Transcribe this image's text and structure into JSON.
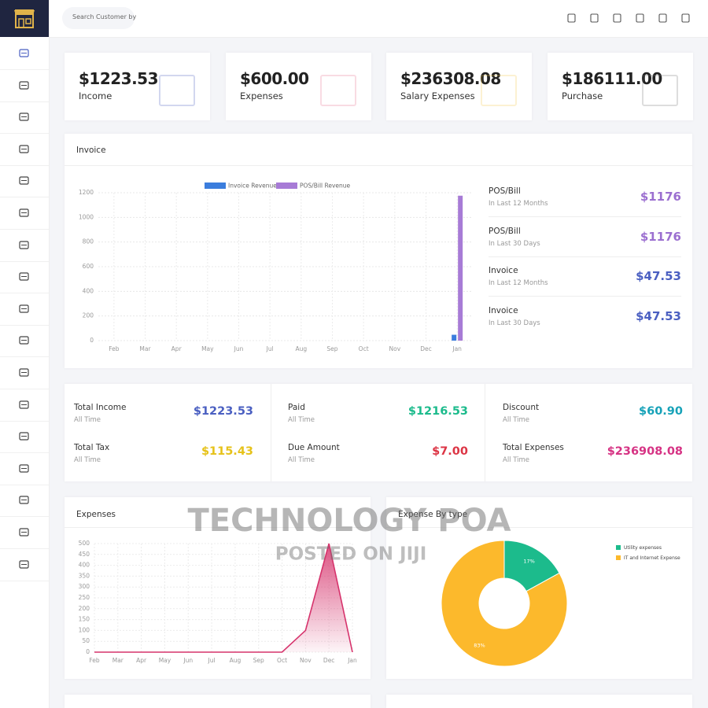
{
  "search_placeholder": "Search Customer by",
  "stat_cards": [
    {
      "value": "$1223.53",
      "label": "Income"
    },
    {
      "value": "$600.00",
      "label": "Expenses"
    },
    {
      "value": "$236308.08",
      "label": "Salary Expenses"
    },
    {
      "value": "$186111.00",
      "label": "Purchase"
    }
  ],
  "invoice_stats": [
    {
      "title": "POS/Bill",
      "period": "In Last 12 Months",
      "value": "$1176",
      "color": "#9b6fd0"
    },
    {
      "title": "POS/Bill",
      "period": "In Last 30 Days",
      "value": "$1176",
      "color": "#9b6fd0"
    },
    {
      "title": "Invoice",
      "period": "In Last 12 Months",
      "value": "$47.53",
      "color": "#4a5fc1"
    },
    {
      "title": "Invoice",
      "period": "In Last 30 Days",
      "value": "$47.53",
      "color": "#4a5fc1"
    }
  ],
  "summary": [
    {
      "title": "Total Income",
      "period": "All Time",
      "value": "$1223.53",
      "color": "#4a5fc1"
    },
    {
      "title": "Paid",
      "period": "All Time",
      "value": "$1216.53",
      "color": "#1cbb8c"
    },
    {
      "title": "Discount",
      "period": "All Time",
      "value": "$60.90",
      "color": "#17a2b8"
    },
    {
      "title": "Total Tax",
      "period": "All Time",
      "value": "$115.43",
      "color": "#e6c21a"
    },
    {
      "title": "Due Amount",
      "period": "All Time",
      "value": "$7.00",
      "color": "#dc3545"
    },
    {
      "title": "Total Expenses",
      "period": "All Time",
      "value": "$236908.08",
      "color": "#d63384"
    }
  ],
  "watermark": [
    "TECHNOLOGY POA",
    "POSTED ON JIJI"
  ],
  "chart_data": [
    {
      "type": "bar",
      "title": "Invoice",
      "categories": [
        "Feb",
        "Mar",
        "Apr",
        "May",
        "Jun",
        "Jul",
        "Aug",
        "Sep",
        "Oct",
        "Nov",
        "Dec",
        "Jan"
      ],
      "series": [
        {
          "name": "Invoice Revenue",
          "color": "#3b7ddd",
          "values": [
            0,
            0,
            0,
            0,
            0,
            0,
            0,
            0,
            0,
            0,
            0,
            47.53
          ]
        },
        {
          "name": "POS/Bill Revenue",
          "color": "#a77bd6",
          "values": [
            0,
            0,
            0,
            0,
            0,
            0,
            0,
            0,
            0,
            0,
            0,
            1176
          ]
        }
      ],
      "ylim": [
        0,
        1200
      ],
      "yticks": [
        0,
        200,
        400,
        600,
        800,
        1000,
        1200
      ],
      "grid": true
    },
    {
      "type": "area",
      "title": "Expenses",
      "categories": [
        "Feb",
        "Mar",
        "Apr",
        "May",
        "Jun",
        "Jul",
        "Aug",
        "Sep",
        "Oct",
        "Nov",
        "Dec",
        "Jan"
      ],
      "values": [
        0,
        0,
        0,
        0,
        0,
        0,
        0,
        0,
        0,
        100,
        500,
        0
      ],
      "color": "#d6336c",
      "ylim": [
        0,
        500
      ],
      "yticks": [
        0,
        50,
        100,
        150,
        200,
        250,
        300,
        350,
        400,
        450,
        500
      ],
      "grid": true
    },
    {
      "type": "pie",
      "title": "Expense By type",
      "categories": [
        "Utility expenses",
        "IT and Internet Expense"
      ],
      "values": [
        17,
        83
      ],
      "value_labels": [
        "17%",
        "83%"
      ],
      "colors": [
        "#1cbb8c",
        "#fcb92c"
      ],
      "donut": true
    }
  ]
}
